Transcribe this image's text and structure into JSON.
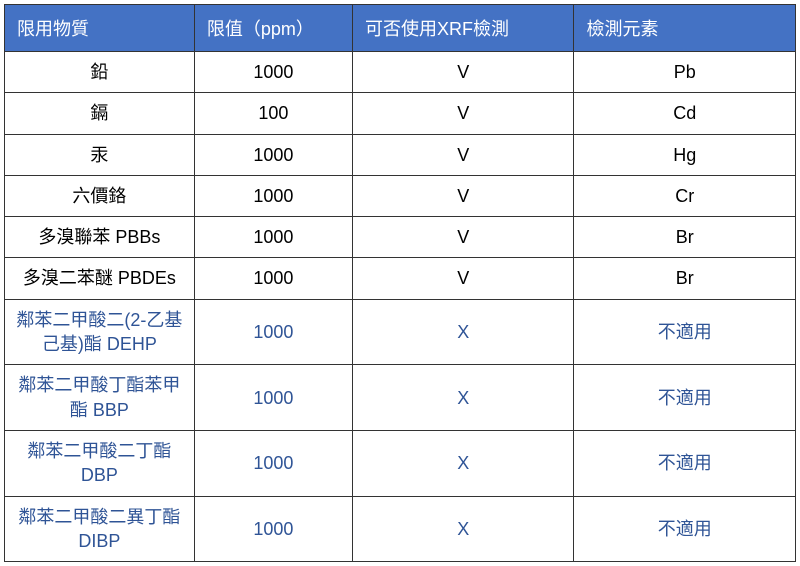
{
  "table": {
    "columns": [
      "限用物質",
      "限值（ppm）",
      "可否使用XRF檢測",
      "檢測元素"
    ],
    "col_widths": [
      "24%",
      "20%",
      "28%",
      "28%"
    ],
    "header_bg": "#4472c4",
    "header_fg": "#ffffff",
    "border_color": "#333333",
    "row_fg_default": "#000000",
    "row_fg_highlight": "#2f5496",
    "rows": [
      {
        "cells": [
          "鉛",
          "1000",
          "V",
          "Pb"
        ],
        "highlight": false
      },
      {
        "cells": [
          "鎘",
          "100",
          "V",
          "Cd"
        ],
        "highlight": false
      },
      {
        "cells": [
          "汞",
          "1000",
          "V",
          "Hg"
        ],
        "highlight": false
      },
      {
        "cells": [
          "六價鉻",
          "1000",
          "V",
          "Cr"
        ],
        "highlight": false
      },
      {
        "cells": [
          "多溴聯苯 PBBs",
          "1000",
          "V",
          "Br"
        ],
        "highlight": false
      },
      {
        "cells": [
          "多溴二苯醚 PBDEs",
          "1000",
          "V",
          "Br"
        ],
        "highlight": false
      },
      {
        "cells": [
          "鄰苯二甲酸二(2-乙基己基)酯 DEHP",
          "1000",
          "X",
          "不適用"
        ],
        "highlight": true
      },
      {
        "cells": [
          "鄰苯二甲酸丁酯苯甲酯 BBP",
          "1000",
          "X",
          "不適用"
        ],
        "highlight": true
      },
      {
        "cells": [
          "鄰苯二甲酸二丁酯 DBP",
          "1000",
          "X",
          "不適用"
        ],
        "highlight": true
      },
      {
        "cells": [
          "鄰苯二甲酸二異丁酯 DIBP",
          "1000",
          "X",
          "不適用"
        ],
        "highlight": true
      }
    ]
  }
}
